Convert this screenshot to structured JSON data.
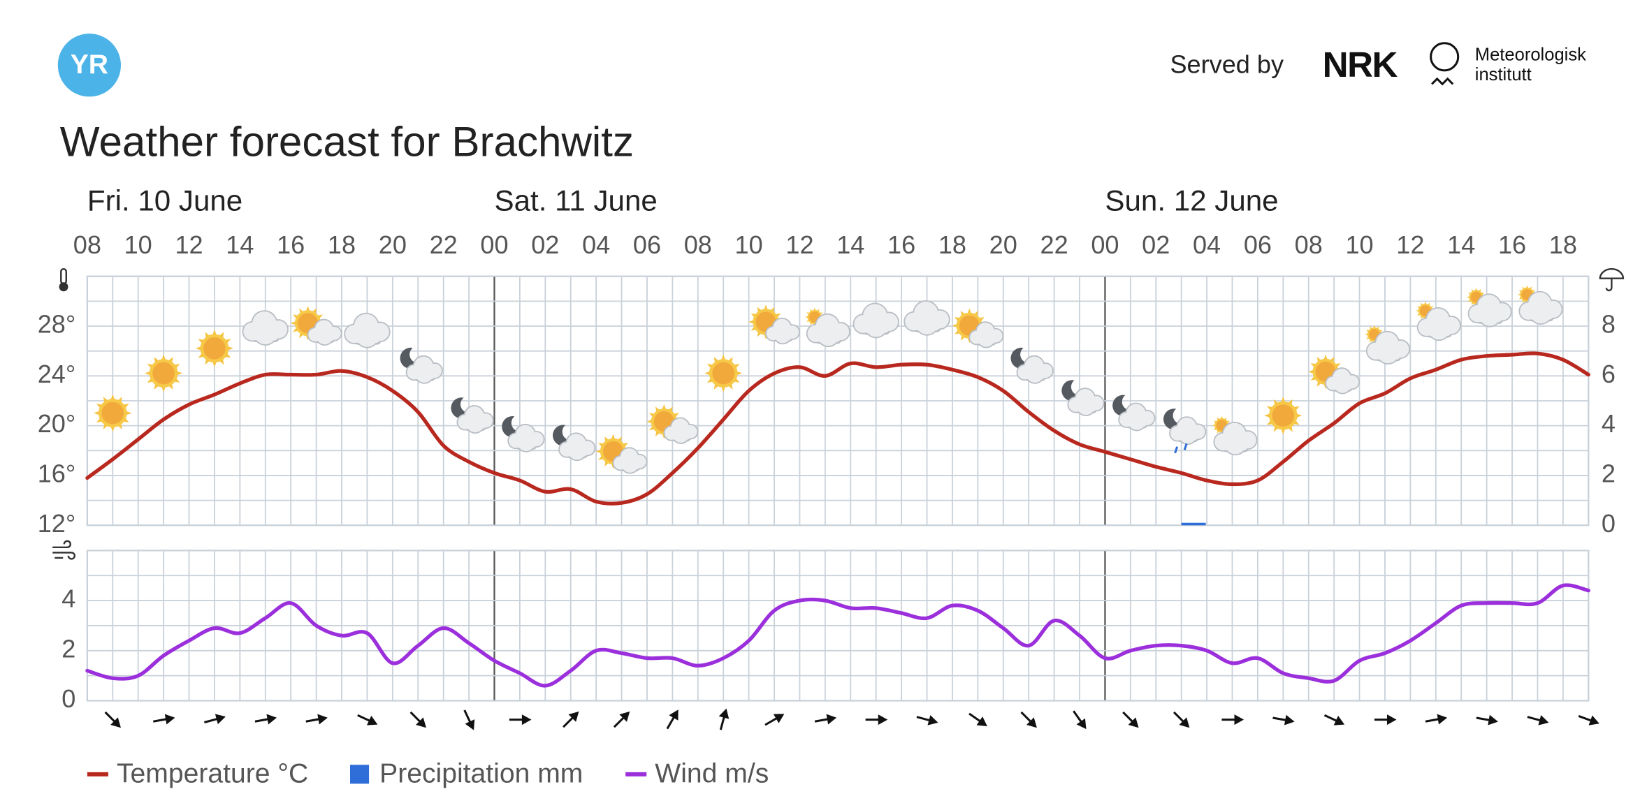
{
  "header": {
    "logo": "YR",
    "served_by": "Served by",
    "nrk": "NRK",
    "met": [
      "Meteorologisk",
      "institutt"
    ]
  },
  "chart_data": [
    {
      "type": "line",
      "title": "Weather forecast for Brachwitz",
      "days": [
        "Fri. 10 June",
        "Sat. 11 June",
        "Sun. 12 June"
      ],
      "categories": [
        "08",
        null,
        "10",
        null,
        "12",
        null,
        "14",
        null,
        "16",
        null,
        "18",
        null,
        "20",
        null,
        "22",
        null,
        "00",
        null,
        "02",
        null,
        "04",
        null,
        "06",
        null,
        "08",
        null,
        "10",
        null,
        "12",
        null,
        "14",
        null,
        "16",
        null,
        "18",
        null,
        "20",
        null,
        "22",
        null,
        "00",
        null,
        "02",
        null,
        "04",
        null,
        "06",
        null,
        "08",
        null,
        "10",
        null,
        "12",
        null,
        "14",
        null,
        "16",
        null,
        "18",
        null
      ],
      "series": [
        {
          "name": "Temperature °C",
          "color": "#b8281e",
          "values": [
            15.8,
            17.3,
            18.9,
            20.5,
            21.7,
            22.5,
            23.4,
            24.1,
            24.1,
            24.1,
            24.4,
            23.9,
            22.8,
            21.1,
            18.4,
            17.1,
            16.2,
            15.6,
            14.7,
            14.9,
            13.9,
            13.8,
            14.5,
            16.2,
            18.2,
            20.5,
            22.8,
            24.2,
            24.7,
            24.0,
            25.0,
            24.7,
            24.9,
            24.9,
            24.5,
            23.9,
            22.8,
            21.1,
            19.6,
            18.5,
            17.9,
            17.3,
            16.7,
            16.2,
            15.6,
            15.3,
            15.6,
            17.1,
            18.8,
            20.2,
            21.8,
            22.6,
            23.8,
            24.5,
            25.3,
            25.6,
            25.7,
            25.8,
            25.3,
            24.1
          ]
        },
        {
          "name": "Precipitation mm",
          "color": "#2f6ed8",
          "type": "bar",
          "axis": "y2",
          "values": [
            0,
            0,
            0,
            0,
            0,
            0,
            0,
            0,
            0,
            0,
            0,
            0,
            0,
            0,
            0,
            0,
            0,
            0,
            0,
            0,
            0,
            0,
            0,
            0,
            0,
            0,
            0,
            0,
            0,
            0,
            0,
            0,
            0,
            0,
            0,
            0,
            0,
            0,
            0,
            0,
            0,
            0,
            0,
            0.1,
            0,
            0,
            0,
            0,
            0,
            0,
            0,
            0,
            0,
            0,
            0,
            0,
            0,
            0,
            0,
            0
          ]
        }
      ],
      "ylim": [
        12,
        32
      ],
      "yticks": [
        {
          "value": 12,
          "label": "12°"
        },
        {
          "value": 16,
          "label": "16°"
        },
        {
          "value": 20,
          "label": "20°"
        },
        {
          "value": 24,
          "label": "24°"
        },
        {
          "value": 28,
          "label": "28°"
        }
      ],
      "y2lim": [
        0,
        10
      ],
      "y2ticks": [
        0,
        2,
        4,
        6,
        8
      ],
      "grid": true
    },
    {
      "type": "line",
      "series": [
        {
          "name": "Wind m/s",
          "color": "#9b2fdc",
          "values": [
            1.2,
            0.9,
            1.0,
            1.8,
            2.4,
            2.9,
            2.7,
            3.3,
            3.9,
            3.0,
            2.6,
            2.7,
            1.5,
            2.2,
            2.9,
            2.3,
            1.6,
            1.1,
            0.6,
            1.2,
            2.0,
            1.9,
            1.7,
            1.7,
            1.4,
            1.7,
            2.4,
            3.6,
            4.0,
            4.0,
            3.7,
            3.7,
            3.5,
            3.3,
            3.8,
            3.6,
            2.9,
            2.2,
            3.2,
            2.6,
            1.7,
            2.0,
            2.2,
            2.2,
            2.0,
            1.5,
            1.7,
            1.1,
            0.9,
            0.8,
            1.6,
            1.9,
            2.4,
            3.1,
            3.8,
            3.9,
            3.9,
            3.9,
            4.6,
            4.4
          ]
        }
      ],
      "ylim": [
        0,
        6
      ],
      "yticks": [
        0,
        2,
        4
      ],
      "grid": true,
      "wind_direction": [
        135,
        80,
        75,
        80,
        80,
        115,
        135,
        155,
        90,
        45,
        45,
        30,
        15,
        60,
        80,
        90,
        105,
        125,
        135,
        145,
        135,
        135,
        90,
        100,
        115,
        90,
        80,
        100,
        105,
        110
      ]
    }
  ]
}
